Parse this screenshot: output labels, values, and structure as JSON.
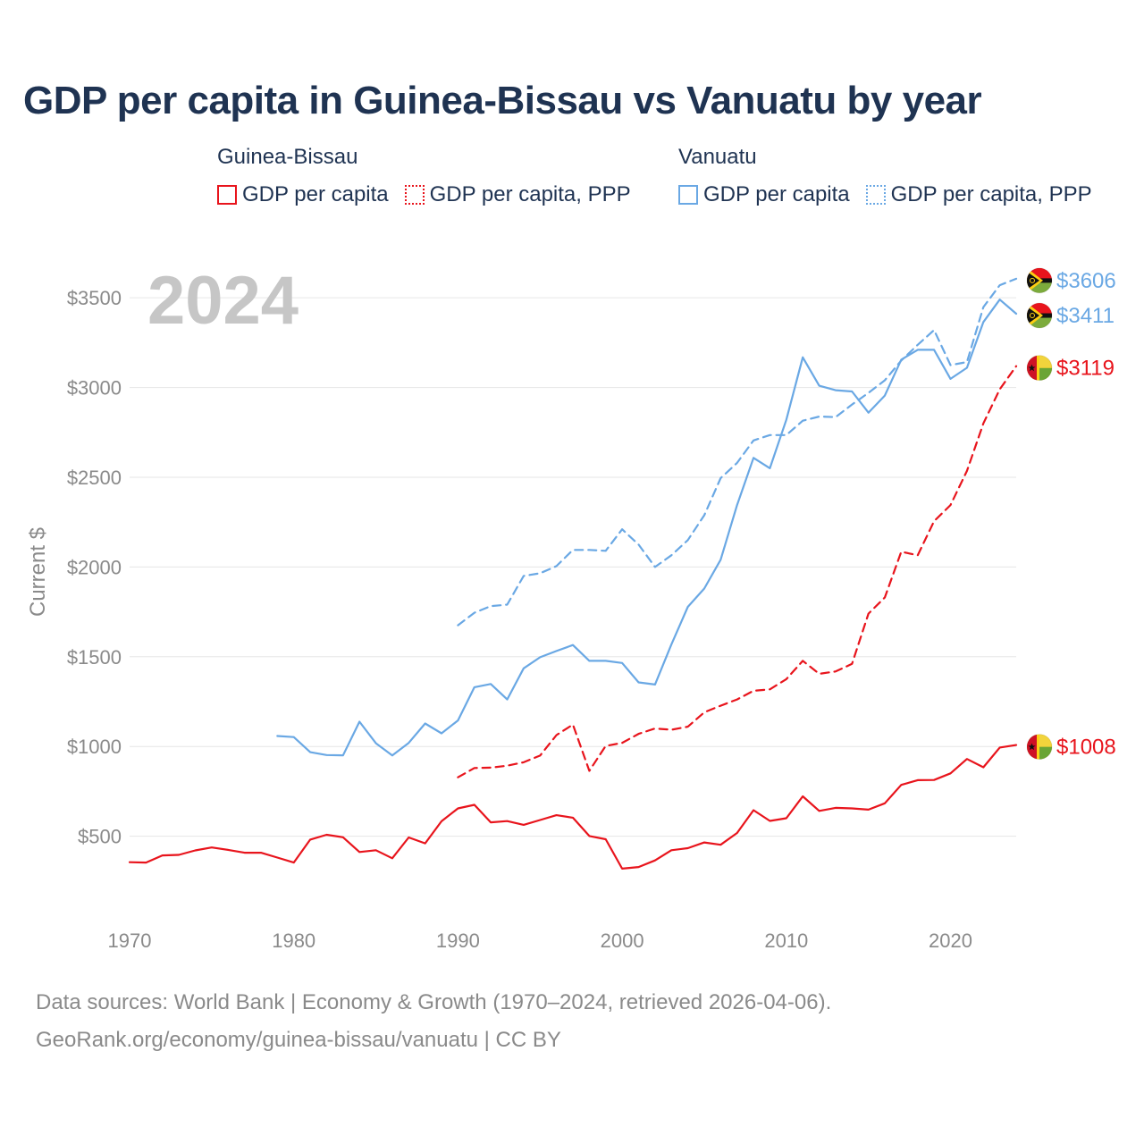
{
  "title": "GDP per capita in Guinea-Bissau vs Vanuatu by year",
  "legend": {
    "groups": [
      {
        "name": "Guinea-Bissau",
        "items": [
          "GDP per capita",
          "GDP per capita, PPP"
        ]
      },
      {
        "name": "Vanuatu",
        "items": [
          "GDP per capita",
          "GDP per capita, PPP"
        ]
      }
    ]
  },
  "colors": {
    "guinea_bissau": "#e8141c",
    "vanuatu": "#6aa8e4",
    "grid": "#e6e6e6"
  },
  "year_overlay": "2024",
  "footer": {
    "line1": "Data sources: World Bank | Economy & Growth (1970–2024, retrieved 2026-04-06).",
    "line2": "GeoRank.org/economy/guinea-bissau/vanuatu | CC BY"
  },
  "chart_data": {
    "type": "line",
    "title": "GDP per capita in Guinea-Bissau vs Vanuatu by year",
    "xlabel": "",
    "ylabel": "Current $",
    "xlim": [
      1970,
      2024
    ],
    "ylim": [
      0,
      3700
    ],
    "xticks": [
      1970,
      1980,
      1990,
      2000,
      2010,
      2020
    ],
    "xtick_labels": [
      "1970",
      "1980",
      "1990",
      "2000",
      "2010",
      "2020"
    ],
    "yticks": [
      500,
      1000,
      1500,
      2000,
      2500,
      3000,
      3500
    ],
    "ytick_labels": [
      "$500",
      "$1000",
      "$1500",
      "$2000",
      "$2500",
      "$3000",
      "$3500"
    ],
    "series": [
      {
        "name": "Guinea-Bissau GDP per capita",
        "color": "#e8141c",
        "dash": false,
        "x": [
          1970,
          1971,
          1972,
          1973,
          1974,
          1975,
          1976,
          1977,
          1978,
          1979,
          1980,
          1981,
          1982,
          1983,
          1984,
          1985,
          1986,
          1987,
          1988,
          1989,
          1990,
          1991,
          1992,
          1993,
          1994,
          1995,
          1996,
          1997,
          1998,
          1999,
          2000,
          2001,
          2002,
          2003,
          2004,
          2005,
          2006,
          2007,
          2008,
          2009,
          2010,
          2011,
          2012,
          2013,
          2014,
          2015,
          2016,
          2017,
          2018,
          2019,
          2020,
          2021,
          2022,
          2023,
          2024
        ],
        "values": [
          355,
          353,
          393,
          396,
          421,
          437,
          424,
          408,
          408,
          381,
          353,
          481,
          508,
          494,
          412,
          422,
          377,
          493,
          460,
          583,
          655,
          675,
          577,
          584,
          563,
          590,
          617,
          603,
          501,
          483,
          319,
          328,
          365,
          422,
          433,
          465,
          452,
          518,
          645,
          585,
          600,
          722,
          641,
          658,
          655,
          648,
          683,
          786,
          812,
          813,
          850,
          930,
          884,
          994,
          1008
        ],
        "end_label": "$1008"
      },
      {
        "name": "Guinea-Bissau GDP per capita, PPP",
        "color": "#e8141c",
        "dash": true,
        "x": [
          1990,
          1991,
          1992,
          1993,
          1994,
          1995,
          1996,
          1997,
          1998,
          1999,
          2000,
          2001,
          2002,
          2003,
          2004,
          2005,
          2006,
          2007,
          2008,
          2009,
          2010,
          2011,
          2012,
          2013,
          2014,
          2015,
          2016,
          2017,
          2018,
          2019,
          2020,
          2021,
          2022,
          2023,
          2024
        ],
        "values": [
          828,
          880,
          882,
          893,
          912,
          949,
          1063,
          1122,
          864,
          1003,
          1020,
          1070,
          1100,
          1093,
          1110,
          1190,
          1227,
          1262,
          1310,
          1318,
          1375,
          1477,
          1405,
          1418,
          1460,
          1740,
          1830,
          2085,
          2065,
          2255,
          2345,
          2535,
          2800,
          2990,
          3119
        ],
        "end_label": "$3119"
      },
      {
        "name": "Vanuatu GDP per capita",
        "color": "#6aa8e4",
        "dash": false,
        "x": [
          1979,
          1980,
          1981,
          1982,
          1983,
          1984,
          1985,
          1986,
          1987,
          1988,
          1989,
          1990,
          1991,
          1992,
          1993,
          1994,
          1995,
          1996,
          1997,
          1998,
          1999,
          2000,
          2001,
          2002,
          2003,
          2004,
          2005,
          2006,
          2007,
          2008,
          2009,
          2010,
          2011,
          2012,
          2013,
          2014,
          2015,
          2016,
          2017,
          2018,
          2019,
          2020,
          2021,
          2022,
          2023,
          2024
        ],
        "values": [
          1058,
          1052,
          968,
          952,
          950,
          1138,
          1018,
          950,
          1020,
          1128,
          1073,
          1145,
          1330,
          1348,
          1262,
          1435,
          1497,
          1532,
          1565,
          1477,
          1477,
          1465,
          1357,
          1345,
          1568,
          1778,
          1880,
          2040,
          2345,
          2608,
          2550,
          2820,
          3168,
          3010,
          2985,
          2978,
          2860,
          2955,
          3155,
          3210,
          3210,
          3048,
          3110,
          3365,
          3490,
          3411
        ],
        "end_label": "$3411"
      },
      {
        "name": "Vanuatu GDP per capita, PPP",
        "color": "#6aa8e4",
        "dash": true,
        "x": [
          1990,
          1991,
          1992,
          1993,
          1994,
          1995,
          1996,
          1997,
          1998,
          1999,
          2000,
          2001,
          2002,
          2003,
          2004,
          2005,
          2006,
          2007,
          2008,
          2009,
          2010,
          2011,
          2012,
          2013,
          2014,
          2015,
          2016,
          2017,
          2018,
          2019,
          2020,
          2021,
          2022,
          2023,
          2024
        ],
        "values": [
          1675,
          1745,
          1782,
          1790,
          1950,
          1965,
          2005,
          2095,
          2095,
          2090,
          2210,
          2125,
          2000,
          2065,
          2150,
          2288,
          2495,
          2580,
          2705,
          2735,
          2735,
          2815,
          2838,
          2835,
          2905,
          2970,
          3040,
          3150,
          3238,
          3320,
          3125,
          3142,
          3448,
          3570,
          3606
        ],
        "end_label": "$3606"
      }
    ]
  }
}
